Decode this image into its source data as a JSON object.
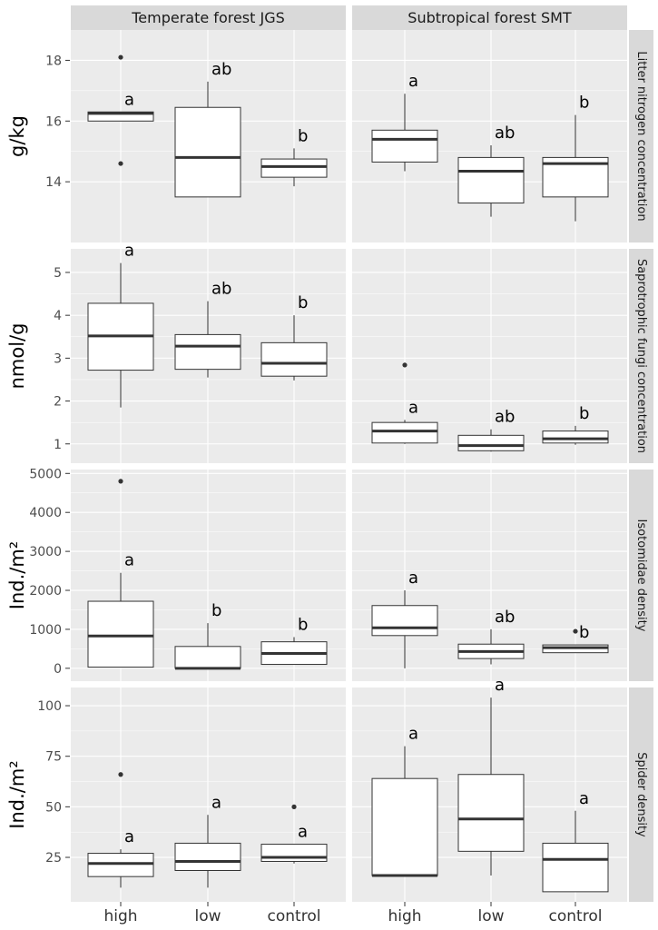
{
  "chart_data": {
    "type": "boxplot",
    "columns": [
      "Temperate forest JGS",
      "Subtropical forest SMT"
    ],
    "categories": [
      "high",
      "low",
      "control"
    ],
    "rows": [
      {
        "label": "Litter nitrogen concentration",
        "ylabel": "g/kg",
        "ylim": [
          12.0,
          19.0
        ],
        "yticks": [
          14,
          16,
          18
        ],
        "ytick_labels": [
          "14",
          "16",
          "18"
        ],
        "panels": [
          {
            "column": "Temperate forest JGS",
            "boxes": [
              {
                "category": "high",
                "min": 16.0,
                "q1": 16.0,
                "median": 16.25,
                "q3": 16.3,
                "max": 16.3,
                "outliers": [
                  18.1,
                  14.6
                ],
                "letter": "a"
              },
              {
                "category": "low",
                "min": 13.5,
                "q1": 13.5,
                "median": 14.8,
                "q3": 16.45,
                "max": 17.3,
                "outliers": [],
                "letter": "ab"
              },
              {
                "category": "control",
                "min": 13.85,
                "q1": 14.15,
                "median": 14.5,
                "q3": 14.75,
                "max": 15.1,
                "outliers": [],
                "letter": "b"
              }
            ]
          },
          {
            "column": "Subtropical forest SMT",
            "boxes": [
              {
                "category": "high",
                "min": 14.35,
                "q1": 14.65,
                "median": 15.4,
                "q3": 15.7,
                "max": 16.9,
                "outliers": [],
                "letter": "a"
              },
              {
                "category": "low",
                "min": 12.85,
                "q1": 13.3,
                "median": 14.35,
                "q3": 14.8,
                "max": 15.2,
                "outliers": [],
                "letter": "ab"
              },
              {
                "category": "control",
                "min": 12.7,
                "q1": 13.5,
                "median": 14.6,
                "q3": 14.8,
                "max": 16.2,
                "outliers": [],
                "letter": "b"
              }
            ]
          }
        ]
      },
      {
        "label": "Saprotrophic fungi concentration",
        "ylabel": "nmol/g",
        "ylim": [
          0.55,
          5.55
        ],
        "yticks": [
          1,
          2,
          3,
          4,
          5
        ],
        "ytick_labels": [
          "1",
          "2",
          "3",
          "4",
          "5"
        ],
        "panels": [
          {
            "column": "Temperate forest JGS",
            "boxes": [
              {
                "category": "high",
                "min": 1.85,
                "q1": 2.72,
                "median": 3.52,
                "q3": 4.28,
                "max": 5.22,
                "outliers": [],
                "letter": "a"
              },
              {
                "category": "low",
                "min": 2.55,
                "q1": 2.74,
                "median": 3.28,
                "q3": 3.55,
                "max": 4.33,
                "outliers": [],
                "letter": "ab"
              },
              {
                "category": "control",
                "min": 2.48,
                "q1": 2.58,
                "median": 2.88,
                "q3": 3.36,
                "max": 4.0,
                "outliers": [],
                "letter": "b"
              }
            ]
          },
          {
            "column": "Subtropical forest SMT",
            "boxes": [
              {
                "category": "high",
                "min": 1.0,
                "q1": 1.02,
                "median": 1.3,
                "q3": 1.5,
                "max": 1.56,
                "outliers": [
                  2.84
                ],
                "letter": "a"
              },
              {
                "category": "low",
                "min": 0.82,
                "q1": 0.84,
                "median": 0.96,
                "q3": 1.2,
                "max": 1.34,
                "outliers": [],
                "letter": "ab"
              },
              {
                "category": "control",
                "min": 0.98,
                "q1": 1.02,
                "median": 1.12,
                "q3": 1.3,
                "max": 1.42,
                "outliers": [],
                "letter": "b"
              }
            ]
          }
        ]
      },
      {
        "label": "Isotomidae density",
        "ylabel": "Ind./m²",
        "ylim": [
          -330,
          5100
        ],
        "yticks": [
          0,
          1000,
          2000,
          3000,
          4000,
          5000
        ],
        "ytick_labels": [
          "0",
          "1000",
          "2000",
          "3000",
          "4000",
          "5000"
        ],
        "panels": [
          {
            "column": "Temperate forest JGS",
            "boxes": [
              {
                "category": "high",
                "min": 30,
                "q1": 30,
                "median": 830,
                "q3": 1720,
                "max": 2450,
                "outliers": [
                  4800
                ],
                "letter": "a"
              },
              {
                "category": "low",
                "min": 0,
                "q1": 0,
                "median": 0,
                "q3": 560,
                "max": 1160,
                "outliers": [],
                "letter": "b"
              },
              {
                "category": "control",
                "min": 100,
                "q1": 100,
                "median": 380,
                "q3": 680,
                "max": 800,
                "outliers": [],
                "letter": "b"
              }
            ]
          },
          {
            "column": "Subtropical forest SMT",
            "boxes": [
              {
                "category": "high",
                "min": 0,
                "q1": 840,
                "median": 1040,
                "q3": 1610,
                "max": 2000,
                "outliers": [],
                "letter": "a"
              },
              {
                "category": "low",
                "min": 100,
                "q1": 250,
                "median": 430,
                "q3": 620,
                "max": 1000,
                "outliers": [],
                "letter": "ab"
              },
              {
                "category": "control",
                "min": 400,
                "q1": 400,
                "median": 530,
                "q3": 600,
                "max": 600,
                "outliers": [
                  950
                ],
                "letter": "b"
              }
            ]
          }
        ]
      },
      {
        "label": "Spider density",
        "ylabel": "Ind./m²",
        "ylim": [
          3,
          109
        ],
        "yticks": [
          25,
          50,
          75,
          100
        ],
        "ytick_labels": [
          "25",
          "50",
          "75",
          "100"
        ],
        "panels": [
          {
            "column": "Temperate forest JGS",
            "boxes": [
              {
                "category": "high",
                "min": 10,
                "q1": 15.5,
                "median": 22,
                "q3": 27,
                "max": 29,
                "outliers": [
                  66
                ],
                "letter": "a"
              },
              {
                "category": "low",
                "min": 10,
                "q1": 18.5,
                "median": 23,
                "q3": 32,
                "max": 46,
                "outliers": [],
                "letter": "a"
              },
              {
                "category": "control",
                "min": 22,
                "q1": 23,
                "median": 25,
                "q3": 31.5,
                "max": 31.5,
                "outliers": [
                  50
                ],
                "letter": "a"
              }
            ]
          },
          {
            "column": "Subtropical forest SMT",
            "boxes": [
              {
                "category": "high",
                "min": 16,
                "q1": 16,
                "median": 16,
                "q3": 64,
                "max": 80,
                "outliers": [],
                "letter": "a"
              },
              {
                "category": "low",
                "min": 16,
                "q1": 28,
                "median": 44,
                "q3": 66,
                "max": 104,
                "outliers": [],
                "letter": "a"
              },
              {
                "category": "control",
                "min": 8,
                "q1": 8,
                "median": 24,
                "q3": 32,
                "max": 48,
                "outliers": [],
                "letter": "a"
              }
            ]
          }
        ]
      }
    ]
  },
  "colors": {
    "panel_bg": "#ebebeb",
    "strip_bg": "#d9d9d9",
    "grid": "#ffffff",
    "box_fill": "#ffffff",
    "box_line": "#333333",
    "outlier": "#333333"
  }
}
